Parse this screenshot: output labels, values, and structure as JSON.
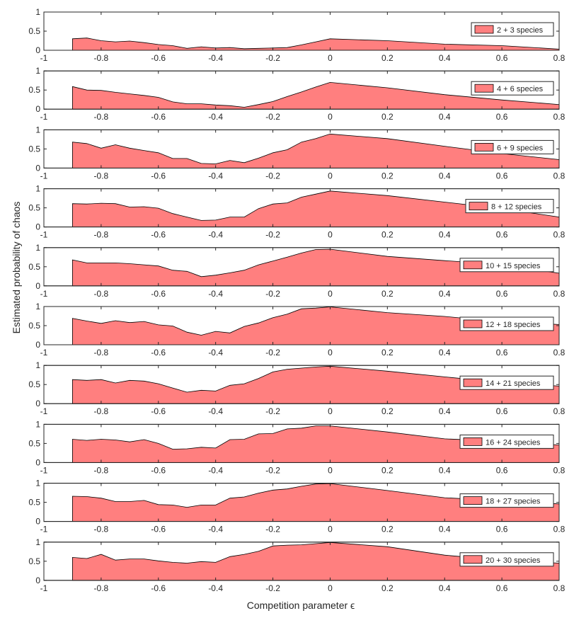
{
  "figure": {
    "ylabel": "Estimated probability of chaos",
    "xlabel": "Competition parameter ϵ"
  },
  "chart_data": {
    "type": "area",
    "layout": "10 stacked subplots sharing the x axis",
    "fill_color": "#ff7f7f",
    "line_color": "#000000",
    "xlim": [
      -1,
      0.8
    ],
    "ylim": [
      0,
      1
    ],
    "x_ticks": [
      -1,
      -0.8,
      -0.6,
      -0.4,
      -0.2,
      0,
      0.2,
      0.4,
      0.6,
      0.8
    ],
    "x_tick_labels": [
      "-1",
      "-0.8",
      "-0.6",
      "-0.4",
      "-0.2",
      "0",
      "0.2",
      "0.4",
      "0.6",
      "0.8"
    ],
    "y_ticks": [
      0,
      0.5,
      1
    ],
    "y_tick_labels": [
      "0",
      "0.5",
      "1"
    ],
    "legend_position": "top-right",
    "x": [
      -0.9,
      -0.85,
      -0.8,
      -0.75,
      -0.7,
      -0.65,
      -0.6,
      -0.55,
      -0.5,
      -0.45,
      -0.4,
      -0.35,
      -0.3,
      -0.25,
      -0.2,
      -0.15,
      -0.1,
      -0.05,
      0,
      0.2,
      0.4,
      0.6,
      0.8
    ],
    "series": [
      {
        "name": "2 + 3 species",
        "values": [
          0.3,
          0.32,
          0.25,
          0.22,
          0.24,
          0.2,
          0.15,
          0.12,
          0.05,
          0.09,
          0.06,
          0.07,
          0.04,
          0.05,
          0.06,
          0.07,
          0.14,
          0.22,
          0.3,
          0.25,
          0.16,
          0.12,
          0.03
        ]
      },
      {
        "name": "4 + 6 species",
        "values": [
          0.59,
          0.5,
          0.49,
          0.44,
          0.4,
          0.36,
          0.31,
          0.19,
          0.14,
          0.14,
          0.11,
          0.09,
          0.05,
          0.12,
          0.2,
          0.33,
          0.45,
          0.58,
          0.7,
          0.56,
          0.38,
          0.24,
          0.12
        ]
      },
      {
        "name": "6 + 9 species",
        "values": [
          0.68,
          0.64,
          0.52,
          0.61,
          0.52,
          0.46,
          0.4,
          0.25,
          0.25,
          0.12,
          0.11,
          0.2,
          0.14,
          0.26,
          0.4,
          0.48,
          0.68,
          0.77,
          0.89,
          0.77,
          0.57,
          0.38,
          0.22
        ]
      },
      {
        "name": "8 + 12 species",
        "values": [
          0.61,
          0.6,
          0.62,
          0.61,
          0.52,
          0.53,
          0.49,
          0.35,
          0.26,
          0.17,
          0.18,
          0.26,
          0.26,
          0.48,
          0.6,
          0.63,
          0.78,
          0.86,
          0.94,
          0.82,
          0.65,
          0.48,
          0.26
        ]
      },
      {
        "name": "10 + 15 species",
        "values": [
          0.68,
          0.6,
          0.6,
          0.6,
          0.58,
          0.55,
          0.52,
          0.41,
          0.38,
          0.24,
          0.28,
          0.34,
          0.41,
          0.55,
          0.65,
          0.75,
          0.86,
          0.95,
          0.96,
          0.77,
          0.66,
          0.56,
          0.33
        ]
      },
      {
        "name": "12 + 18 species",
        "values": [
          0.69,
          0.62,
          0.56,
          0.63,
          0.58,
          0.61,
          0.52,
          0.49,
          0.33,
          0.25,
          0.35,
          0.31,
          0.48,
          0.57,
          0.71,
          0.8,
          0.94,
          0.96,
          0.99,
          0.84,
          0.74,
          0.6,
          0.53
        ]
      },
      {
        "name": "14 + 21 species",
        "values": [
          0.63,
          0.61,
          0.63,
          0.54,
          0.61,
          0.59,
          0.52,
          0.41,
          0.3,
          0.35,
          0.33,
          0.48,
          0.52,
          0.66,
          0.83,
          0.9,
          0.93,
          0.96,
          0.98,
          0.85,
          0.7,
          0.56,
          0.46
        ]
      },
      {
        "name": "16 + 24 species",
        "values": [
          0.61,
          0.58,
          0.61,
          0.59,
          0.54,
          0.6,
          0.5,
          0.35,
          0.36,
          0.4,
          0.38,
          0.6,
          0.61,
          0.75,
          0.76,
          0.88,
          0.9,
          0.96,
          0.96,
          0.8,
          0.62,
          0.56,
          0.46
        ]
      },
      {
        "name": "18 + 27 species",
        "values": [
          0.66,
          0.65,
          0.61,
          0.52,
          0.52,
          0.55,
          0.44,
          0.43,
          0.37,
          0.43,
          0.43,
          0.61,
          0.64,
          0.74,
          0.82,
          0.85,
          0.92,
          0.98,
          0.99,
          0.81,
          0.62,
          0.54,
          0.46
        ]
      },
      {
        "name": "20 + 30 species",
        "values": [
          0.6,
          0.57,
          0.68,
          0.53,
          0.56,
          0.56,
          0.51,
          0.47,
          0.45,
          0.49,
          0.47,
          0.62,
          0.68,
          0.76,
          0.9,
          0.92,
          0.93,
          0.96,
          0.99,
          0.88,
          0.66,
          0.53,
          0.45
        ]
      }
    ]
  }
}
